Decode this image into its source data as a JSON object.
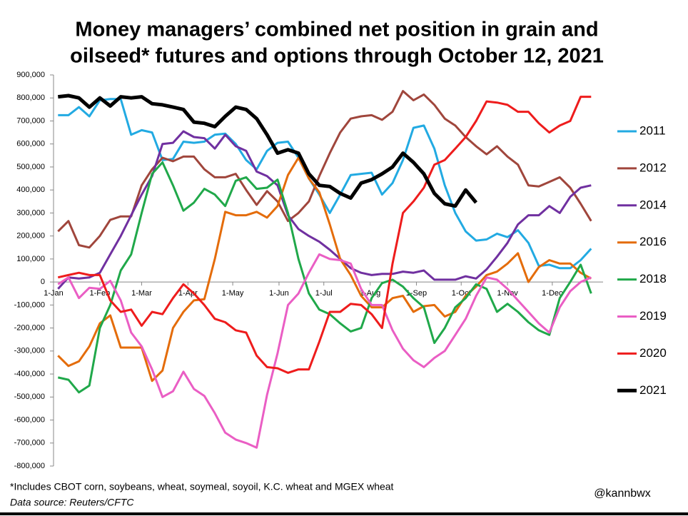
{
  "chart_data": {
    "type": "line",
    "title": [
      "Money managers’ combined net position in grain and",
      "oilseed* futures and options through October 12, 2021"
    ],
    "footnote": "*Includes CBOT corn, soybeans, wheat, soymeal, soyoil, K.C. wheat and MGEX wheat",
    "source": "Data source: Reuters/CFTC",
    "credit": "@kannbwx",
    "xlim": [
      1,
      369
    ],
    "ylim": [
      -800000,
      900000
    ],
    "xticks": [
      {
        "value": 1,
        "label": "1-Jan"
      },
      {
        "value": 32,
        "label": "1-Feb"
      },
      {
        "value": 60,
        "label": "1-Mar"
      },
      {
        "value": 91,
        "label": "1-Apr"
      },
      {
        "value": 121,
        "label": "1-May"
      },
      {
        "value": 152,
        "label": "1-Jun"
      },
      {
        "value": 182,
        "label": "1-Jul"
      },
      {
        "value": 213,
        "label": "1-Aug"
      },
      {
        "value": 244,
        "label": "1-Sep"
      },
      {
        "value": 274,
        "label": "1-Oct"
      },
      {
        "value": 305,
        "label": "1-Nov"
      },
      {
        "value": 335,
        "label": "1-Dec"
      }
    ],
    "yticks": [
      {
        "value": 900000,
        "label": "900,000"
      },
      {
        "value": 800000,
        "label": "800,000"
      },
      {
        "value": 700000,
        "label": "700,000"
      },
      {
        "value": 600000,
        "label": "600,000"
      },
      {
        "value": 500000,
        "label": "500,000"
      },
      {
        "value": 400000,
        "label": "400,000"
      },
      {
        "value": 300000,
        "label": "300,000"
      },
      {
        "value": 200000,
        "label": "200,000"
      },
      {
        "value": 100000,
        "label": "100,000"
      },
      0,
      {
        "value": -100000,
        "label": "-100,000"
      },
      {
        "value": -200000,
        "label": "-200,000"
      },
      {
        "value": -300000,
        "label": "-300,000"
      },
      {
        "value": -400000,
        "label": "-400,000"
      },
      {
        "value": -500000,
        "label": "-500,000"
      },
      {
        "value": -600000,
        "label": "-600,000"
      },
      {
        "value": -700000,
        "label": "-700,000"
      },
      {
        "value": -800000,
        "label": "-800,000"
      }
    ],
    "grid": false,
    "legend": "right",
    "x": [
      4,
      11,
      18,
      25,
      32,
      39,
      46,
      53,
      60,
      67,
      74,
      81,
      88,
      95,
      102,
      109,
      116,
      123,
      130,
      137,
      144,
      151,
      158,
      165,
      172,
      179,
      186,
      193,
      200,
      207,
      214,
      221,
      228,
      235,
      242,
      249,
      256,
      263,
      270,
      277,
      284,
      291,
      298,
      305,
      312,
      319,
      326,
      333,
      340,
      347,
      354,
      361
    ],
    "series": [
      {
        "name": "2011",
        "color": "#22aae2",
        "width": 3,
        "values": [
          725000,
          725000,
          760000,
          720000,
          790000,
          795000,
          795000,
          640000,
          660000,
          650000,
          530000,
          535000,
          610000,
          605000,
          610000,
          640000,
          645000,
          600000,
          530000,
          490000,
          570000,
          605000,
          610000,
          540000,
          450000,
          380000,
          300000,
          380000,
          465000,
          470000,
          475000,
          380000,
          430000,
          530000,
          670000,
          680000,
          580000,
          420000,
          300000,
          220000,
          180000,
          185000,
          210000,
          195000,
          225000,
          170000,
          70000,
          75000,
          60000,
          60000,
          95000,
          145000
        ]
      },
      {
        "name": "2012",
        "color": "#a0463c",
        "width": 3,
        "values": [
          220000,
          265000,
          160000,
          150000,
          200000,
          270000,
          285000,
          285000,
          420000,
          490000,
          540000,
          525000,
          545000,
          545000,
          490000,
          455000,
          455000,
          470000,
          400000,
          335000,
          395000,
          350000,
          265000,
          300000,
          350000,
          460000,
          560000,
          650000,
          710000,
          720000,
          725000,
          705000,
          740000,
          830000,
          790000,
          815000,
          770000,
          710000,
          680000,
          630000,
          590000,
          555000,
          590000,
          545000,
          510000,
          420000,
          415000,
          435000,
          455000,
          410000,
          340000,
          265000
        ]
      },
      {
        "name": "2014",
        "color": "#7030a0",
        "width": 3,
        "values": [
          -30000,
          20000,
          15000,
          20000,
          40000,
          120000,
          200000,
          290000,
          380000,
          460000,
          600000,
          605000,
          655000,
          630000,
          625000,
          580000,
          640000,
          590000,
          570000,
          480000,
          460000,
          420000,
          290000,
          230000,
          200000,
          175000,
          140000,
          100000,
          60000,
          40000,
          30000,
          35000,
          35000,
          45000,
          40000,
          50000,
          10000,
          10000,
          10000,
          25000,
          15000,
          55000,
          110000,
          170000,
          250000,
          290000,
          290000,
          330000,
          300000,
          370000,
          410000,
          420000
        ]
      },
      {
        "name": "2016",
        "color": "#e46c0a",
        "width": 3,
        "values": [
          -320000,
          -365000,
          -345000,
          -280000,
          -180000,
          -145000,
          -285000,
          -285000,
          -285000,
          -430000,
          -385000,
          -200000,
          -130000,
          -80000,
          -75000,
          100000,
          305000,
          290000,
          290000,
          305000,
          280000,
          330000,
          465000,
          540000,
          450000,
          390000,
          250000,
          100000,
          30000,
          -60000,
          -110000,
          -110000,
          -70000,
          -60000,
          -130000,
          -105000,
          -100000,
          -150000,
          -130000,
          -60000,
          -20000,
          30000,
          45000,
          80000,
          125000,
          0,
          65000,
          95000,
          80000,
          80000,
          40000,
          15000
        ]
      },
      {
        "name": "2018",
        "color": "#20a84a",
        "width": 3,
        "values": [
          -415000,
          -425000,
          -480000,
          -450000,
          -200000,
          -100000,
          50000,
          120000,
          300000,
          470000,
          520000,
          420000,
          310000,
          345000,
          405000,
          380000,
          330000,
          440000,
          455000,
          405000,
          410000,
          445000,
          300000,
          100000,
          -50000,
          -120000,
          -140000,
          -180000,
          -215000,
          -200000,
          -70000,
          -5000,
          10000,
          -20000,
          -70000,
          -110000,
          -265000,
          -200000,
          -110000,
          -70000,
          -10000,
          -30000,
          -130000,
          -95000,
          -130000,
          -175000,
          -210000,
          -230000,
          -70000,
          0,
          75000,
          -50000
        ]
      },
      {
        "name": "2019",
        "color": "#ea5ec4",
        "width": 3,
        "values": [
          -10000,
          20000,
          -70000,
          -25000,
          -30000,
          5000,
          -80000,
          -220000,
          -280000,
          -380000,
          -500000,
          -475000,
          -390000,
          -465000,
          -495000,
          -570000,
          -655000,
          -685000,
          -700000,
          -720000,
          -490000,
          -310000,
          -100000,
          -50000,
          40000,
          120000,
          100000,
          95000,
          80000,
          -30000,
          -100000,
          -100000,
          -210000,
          -290000,
          -340000,
          -370000,
          -330000,
          -300000,
          -230000,
          -160000,
          -60000,
          20000,
          10000,
          -30000,
          -80000,
          -130000,
          -180000,
          -220000,
          -110000,
          -40000,
          0,
          20000
        ]
      },
      {
        "name": "2020",
        "color": "#ee1c1c",
        "width": 3,
        "values": [
          20000,
          30000,
          40000,
          30000,
          30000,
          -80000,
          -130000,
          -120000,
          -190000,
          -130000,
          -140000,
          -70000,
          -10000,
          -50000,
          -100000,
          -160000,
          -175000,
          -210000,
          -220000,
          -320000,
          -370000,
          -375000,
          -395000,
          -380000,
          -380000,
          -260000,
          -130000,
          -130000,
          -95000,
          -100000,
          -140000,
          -200000,
          80000,
          300000,
          350000,
          410000,
          510000,
          530000,
          580000,
          630000,
          700000,
          785000,
          780000,
          770000,
          740000,
          740000,
          690000,
          650000,
          680000,
          700000,
          805000,
          805000
        ]
      },
      {
        "name": "2021",
        "color": "#000000",
        "width": 5,
        "values": [
          805000,
          810000,
          800000,
          760000,
          800000,
          765000,
          805000,
          800000,
          805000,
          775000,
          770000,
          760000,
          750000,
          695000,
          690000,
          675000,
          720000,
          760000,
          750000,
          710000,
          640000,
          560000,
          575000,
          560000,
          470000,
          420000,
          415000,
          385000,
          365000,
          430000,
          445000,
          470000,
          500000,
          560000,
          520000,
          470000,
          385000,
          340000,
          330000,
          400000,
          345000,
          null,
          null,
          null,
          null,
          null,
          null,
          null,
          null,
          null,
          null,
          null
        ]
      }
    ]
  }
}
